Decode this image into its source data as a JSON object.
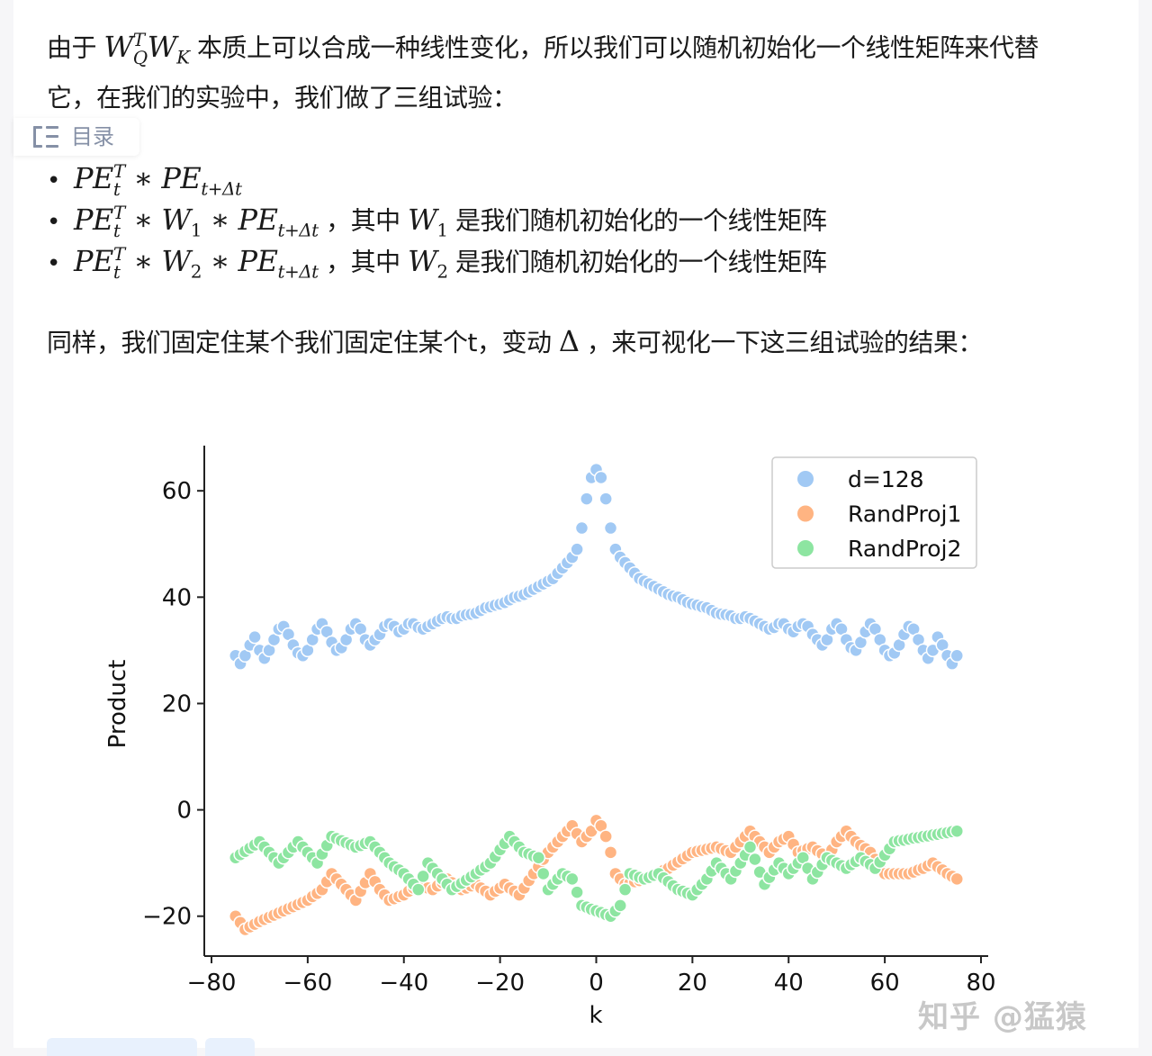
{
  "paragraph1": {
    "prefix": "由于 ",
    "math_W": "W",
    "math_sup_T": "T",
    "math_sub_Q": "Q",
    "math_WK": "W",
    "math_sub_K": "K",
    "rest_line1": " 本质上可以合成一种线性变化，所以我们可以随机初始化一个线性矩阵来代替",
    "line2": "它，在我们的实验中，我们做了三组试验："
  },
  "toc": {
    "label": "目录",
    "icon": "list-icon"
  },
  "bullets": [
    {
      "pe": "PE",
      "t": "t",
      "T": "T",
      "star": " ∗ ",
      "pe2": "PE",
      "sub2": "t+Δt",
      "w": "",
      "wsub": "",
      "tail": ""
    },
    {
      "pe": "PE",
      "t": "t",
      "T": "T",
      "star": " ∗ ",
      "w": "W",
      "wsub": "1",
      "star2": " ∗ ",
      "pe2": "PE",
      "sub2": "t+Δt",
      "comma": " ，其中 ",
      "w2": "W",
      "w2sub": "1",
      "tail": " 是我们随机初始化的一个线性矩阵"
    },
    {
      "pe": "PE",
      "t": "t",
      "T": "T",
      "star": " ∗ ",
      "w": "W",
      "wsub": "2",
      "star2": " ∗ ",
      "pe2": "PE",
      "sub2": "t+Δt",
      "comma": " ，其中 ",
      "w2": "W",
      "w2sub": "2",
      "tail": " 是我们随机初始化的一个线性矩阵"
    }
  ],
  "paragraph2": {
    "text": "同样，我们固定住某个我们固定住某个t，变动 ",
    "delta": "Δ",
    "tail": " ，来可视化一下这三组试验的结果："
  },
  "chart_data": {
    "type": "scatter",
    "title": "",
    "xlabel": "k",
    "ylabel": "Product",
    "xlim": [
      -81.5,
      81.5
    ],
    "ylim": [
      -27.5,
      68.5
    ],
    "xticks": [
      "−80",
      "−60",
      "−40",
      "−20",
      "0",
      "20",
      "40",
      "60",
      "80"
    ],
    "xtick_values": [
      -80,
      -60,
      -40,
      -20,
      0,
      20,
      40,
      60,
      80
    ],
    "yticks": [
      "−20",
      "0",
      "20",
      "40",
      "60"
    ],
    "ytick_values": [
      -20,
      0,
      20,
      40,
      60
    ],
    "grid": false,
    "legend_position": "top-right",
    "x": {
      "start": -75,
      "end": 75,
      "step": 1
    },
    "series": [
      {
        "name": "d=128",
        "color": "#a1c9f4",
        "values": [
          29,
          27.5,
          29,
          31,
          32.5,
          30,
          28.5,
          30,
          32,
          34,
          34.5,
          33,
          31,
          29.5,
          29,
          30,
          32,
          34,
          35,
          33.5,
          31.5,
          30,
          30.5,
          32,
          34,
          35,
          34,
          32,
          31,
          32,
          33,
          34.5,
          35,
          34.5,
          33.5,
          34,
          35,
          35,
          34.3,
          34,
          34.5,
          35,
          35.5,
          36,
          36.3,
          36,
          36,
          36.5,
          36.7,
          36.8,
          37,
          37.5,
          38,
          38.2,
          38.5,
          38.7,
          39,
          39.5,
          40,
          40.2,
          40.5,
          41,
          41.5,
          42,
          42.5,
          43,
          43.5,
          44.5,
          45.5,
          46.5,
          47.5,
          49,
          53,
          58.5,
          62.5,
          64,
          62.5,
          58.5,
          53,
          49,
          47.5,
          46.5,
          45.5,
          44.5,
          43.5,
          43,
          42.5,
          42,
          41.5,
          41,
          40.5,
          40.2,
          40,
          39.5,
          39,
          38.7,
          38.5,
          38.2,
          38,
          37.5,
          37,
          36.8,
          36.7,
          36.5,
          36,
          36,
          36.3,
          36,
          35.5,
          35,
          34.5,
          34,
          34.3,
          35,
          35,
          34,
          33.5,
          34.5,
          35,
          34.5,
          33,
          32,
          31,
          32,
          34,
          35,
          34,
          32,
          30.5,
          30,
          31.5,
          33.5,
          35,
          34,
          32,
          30,
          29,
          29.5,
          31,
          33,
          34.5,
          34,
          32,
          30,
          28.5,
          30,
          32.5,
          31,
          29,
          27.5,
          29
        ]
      },
      {
        "name": "RandProj1",
        "color": "#ffb482",
        "values": [
          -20,
          -21.2,
          -22.5,
          -22,
          -21.5,
          -21,
          -20.6,
          -20.2,
          -19.8,
          -19.4,
          -19,
          -18.6,
          -18.2,
          -17.8,
          -17.4,
          -17,
          -16.3,
          -15.7,
          -15,
          -13.5,
          -12,
          -13,
          -14,
          -15,
          -16,
          -17,
          -15.3,
          -13.7,
          -12,
          -13.5,
          -15,
          -16,
          -17,
          -16.7,
          -16.3,
          -16,
          -15.3,
          -14.7,
          -14,
          -14.3,
          -14.7,
          -15,
          -14.3,
          -13.7,
          -13,
          -13.7,
          -14.3,
          -15,
          -14.7,
          -14.3,
          -14,
          -14.7,
          -15.3,
          -16,
          -15.3,
          -14.7,
          -14,
          -14.7,
          -15.3,
          -16,
          -14.7,
          -13.3,
          -12,
          -10.7,
          -9.3,
          -8,
          -7,
          -6,
          -5,
          -4,
          -3,
          -4.5,
          -6,
          -5,
          -4,
          -2,
          -3,
          -5,
          -8,
          -12,
          -13,
          -14,
          -13.8,
          -13.5,
          -13.3,
          -13,
          -12.6,
          -12.2,
          -11.8,
          -11.4,
          -11,
          -10.4,
          -9.8,
          -9.2,
          -8.6,
          -8,
          -7.8,
          -7.6,
          -7.4,
          -7.2,
          -7,
          -7.3,
          -7.7,
          -8,
          -7,
          -6,
          -5,
          -4,
          -5,
          -6,
          -7,
          -8,
          -7,
          -6,
          -5.5,
          -5,
          -6.5,
          -8,
          -7.7,
          -7.3,
          -7,
          -7.7,
          -8.3,
          -9,
          -7.5,
          -6,
          -5,
          -4,
          -5,
          -6,
          -6.7,
          -7.3,
          -8,
          -9.3,
          -10.7,
          -12,
          -12,
          -12,
          -12,
          -12,
          -12,
          -11.7,
          -11.3,
          -11,
          -10.5,
          -10,
          -10.7,
          -11.3,
          -12,
          -12.5,
          -13
        ]
      },
      {
        "name": "RandProj2",
        "color": "#8de5a1",
        "values": [
          -9,
          -8.4,
          -7.8,
          -7.2,
          -6.6,
          -6,
          -7,
          -8,
          -9,
          -10,
          -9,
          -8,
          -7,
          -6,
          -7,
          -8,
          -9,
          -10,
          -8.3,
          -6.7,
          -5,
          -5.4,
          -5.8,
          -6.2,
          -6.6,
          -7,
          -6.7,
          -6.3,
          -6,
          -7,
          -8,
          -9,
          -10,
          -10.7,
          -11.3,
          -12,
          -13,
          -14,
          -15,
          -12.5,
          -10,
          -11,
          -12,
          -13,
          -14,
          -15,
          -14.4,
          -13.8,
          -13.2,
          -12.6,
          -12,
          -11.3,
          -10.7,
          -10,
          -8.8,
          -7.5,
          -6.3,
          -5,
          -6,
          -7,
          -8,
          -8.3,
          -8.7,
          -9,
          -12,
          -15,
          -14,
          -13,
          -12,
          -12.5,
          -13,
          -15.5,
          -18,
          -18.3,
          -18.7,
          -19,
          -19.3,
          -19.7,
          -20,
          -19,
          -18,
          -15,
          -12,
          -12.3,
          -12.7,
          -13,
          -12.7,
          -12.3,
          -12,
          -12.8,
          -13.5,
          -14.3,
          -15,
          -15.3,
          -15.7,
          -16,
          -15,
          -14,
          -13,
          -11.5,
          -10,
          -11,
          -12,
          -13,
          -11.5,
          -10,
          -8.5,
          -7,
          -9.3,
          -11.7,
          -14,
          -12.7,
          -11.3,
          -10,
          -11,
          -12,
          -11,
          -10,
          -9,
          -11,
          -13,
          -11.7,
          -10.3,
          -9,
          -9.5,
          -10,
          -10.5,
          -11,
          -10.3,
          -9.7,
          -9,
          -9.7,
          -10.3,
          -11,
          -9.8,
          -8.5,
          -7.3,
          -6,
          -5.8,
          -5.7,
          -5.5,
          -5.3,
          -5.2,
          -5,
          -4.9,
          -4.7,
          -4.6,
          -4.4,
          -4.3,
          -4.1,
          -4
        ]
      }
    ]
  },
  "watermark": "知乎 @猛猿"
}
